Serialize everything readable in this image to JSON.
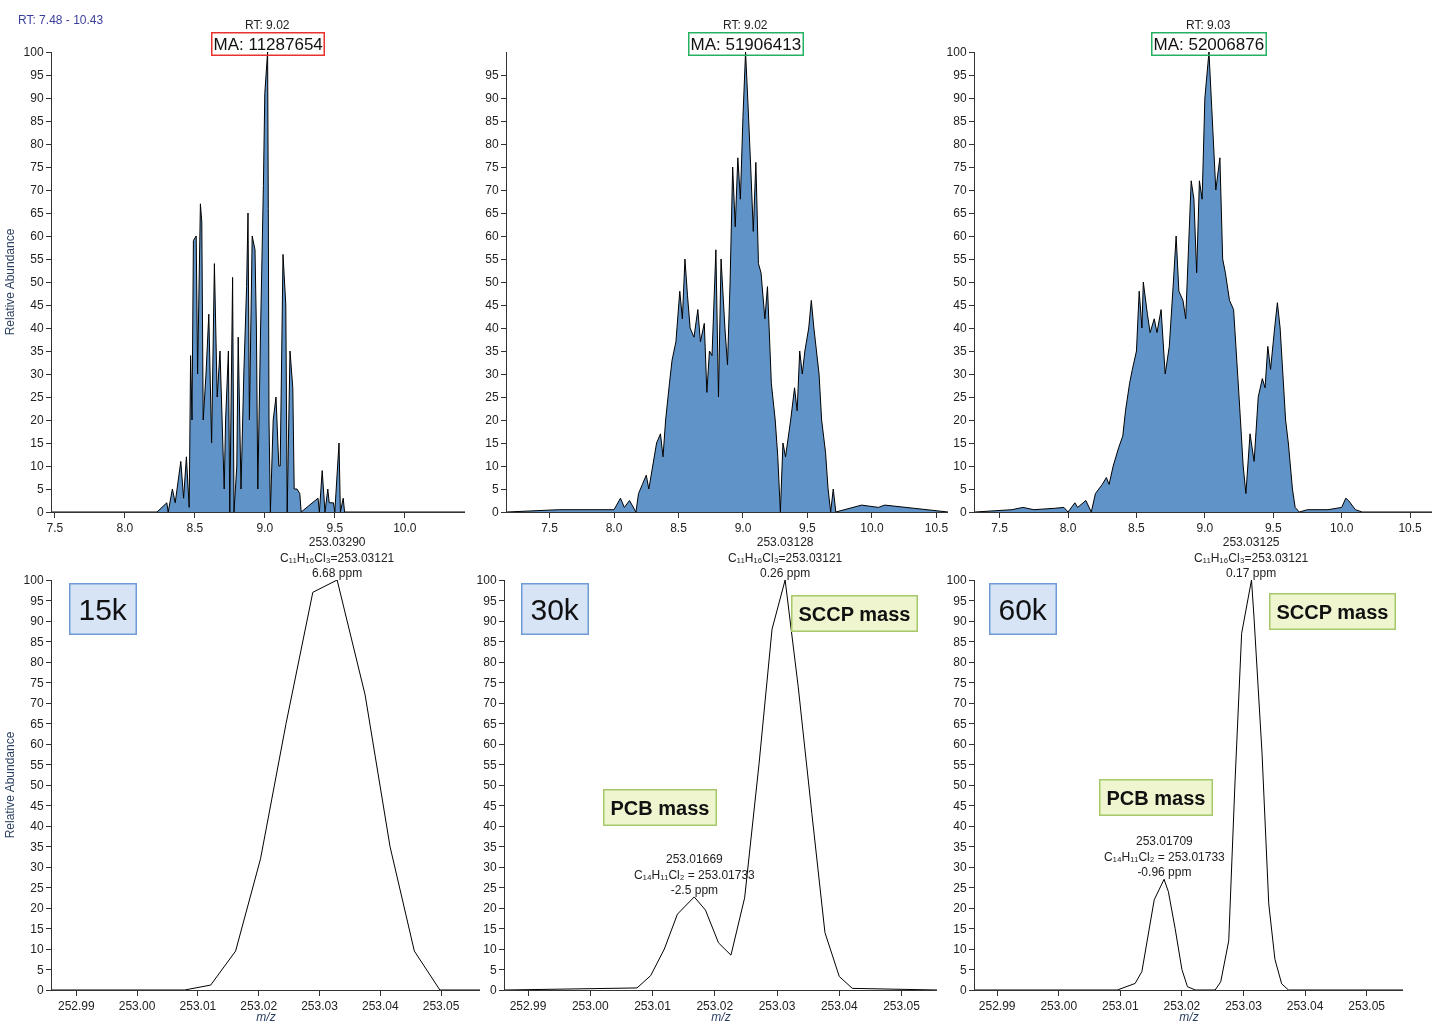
{
  "chart_data": [
    {
      "type": "area",
      "ylabel": "Relative Abundance",
      "xlim": [
        7.48,
        10.43
      ],
      "ylim": [
        0,
        100
      ],
      "xticks": [
        7.5,
        {
          "value": 8,
          "label": "8.0"
        },
        8.5,
        {
          "value": 9,
          "label": "9.0"
        },
        9.5,
        {
          "value": 10,
          "label": "10.0"
        }
      ],
      "yticks": [
        0,
        5,
        10,
        15,
        20,
        25,
        30,
        35,
        40,
        45,
        50,
        55,
        60,
        65,
        70,
        75,
        80,
        85,
        90,
        95,
        100
      ],
      "x": [
        7.48,
        8.23,
        8.3,
        8.31,
        8.34,
        8.36,
        8.4,
        8.42,
        8.44,
        8.46,
        8.47,
        8.48,
        8.49,
        8.51,
        8.52,
        8.54,
        8.55,
        8.56,
        8.58,
        8.6,
        8.62,
        8.64,
        8.66,
        8.68,
        8.71,
        8.72,
        8.74,
        8.75,
        8.77,
        8.78,
        8.8,
        8.81,
        8.83,
        8.85,
        8.87,
        8.88,
        8.89,
        8.91,
        8.93,
        8.94,
        8.95,
        8.97,
        8.99,
        9.0,
        9.02,
        9.025,
        9.03,
        9.04,
        9.06,
        9.08,
        9.1,
        9.11,
        9.13,
        9.15,
        9.16,
        9.18,
        9.2,
        9.21,
        9.23,
        9.25,
        9.26,
        9.38,
        9.39,
        9.41,
        9.43,
        9.45,
        9.46,
        9.49,
        9.5,
        9.53,
        9.54,
        9.56,
        9.57,
        9.7,
        10.43
      ],
      "series": [
        {
          "color": "#6094c8",
          "values": [
            0,
            0,
            2,
            0,
            5,
            2,
            11,
            3,
            12,
            1,
            34,
            20,
            59,
            60,
            30,
            67,
            63,
            20,
            30,
            43,
            15,
            54,
            25,
            35,
            5,
            20,
            35,
            0,
            51,
            0,
            10,
            38,
            5,
            30,
            49,
            65,
            20,
            60,
            57,
            40,
            5,
            40,
            71,
            91,
            100,
            66,
            20,
            0,
            20,
            25,
            10,
            10,
            56,
            45,
            0,
            35,
            27,
            5,
            5,
            4,
            0,
            3,
            0,
            9,
            0,
            5,
            2,
            2,
            0,
            15,
            0,
            3,
            0,
            0,
            0
          ]
        }
      ],
      "annotations": [
        "RT: 7.48 - 10.43",
        {
          "text": "RT: 9.02",
          "x": 9.02,
          "y": 100
        },
        {
          "text": "MA: 11287654",
          "x": 9.02,
          "y": 100
        }
      ]
    },
    {
      "type": "area",
      "xlim": [
        7.17,
        10.59
      ],
      "ylim": [
        0,
        100
      ],
      "xticks": [
        7.5,
        {
          "value": 8,
          "label": "8.0"
        },
        8.5,
        {
          "value": 9,
          "label": "9.0"
        },
        9.5,
        {
          "value": 10,
          "label": "10.0"
        },
        10.5
      ],
      "yticks": [
        0,
        5,
        10,
        15,
        20,
        25,
        30,
        35,
        40,
        45,
        50,
        55,
        60,
        65,
        70,
        75,
        80,
        85,
        90,
        95
      ],
      "x": [
        7.17,
        7.57,
        8.0,
        8.05,
        8.08,
        8.12,
        8.17,
        8.19,
        8.22,
        8.25,
        8.27,
        8.3,
        8.33,
        8.36,
        8.38,
        8.4,
        8.43,
        8.45,
        8.48,
        8.51,
        8.53,
        8.55,
        8.57,
        8.59,
        8.62,
        8.65,
        8.67,
        8.7,
        8.72,
        8.74,
        8.76,
        8.79,
        8.81,
        8.83,
        8.86,
        8.88,
        8.9,
        8.92,
        8.94,
        8.96,
        8.98,
        9.0,
        9.02,
        9.04,
        9.06,
        9.08,
        9.1,
        9.12,
        9.14,
        9.17,
        9.19,
        9.22,
        9.25,
        9.27,
        9.29,
        9.31,
        9.33,
        9.37,
        9.4,
        9.42,
        9.44,
        9.46,
        9.48,
        9.51,
        9.53,
        9.55,
        9.57,
        9.59,
        9.61,
        9.64,
        9.66,
        9.68,
        9.7,
        9.72,
        9.92,
        10.05,
        10.1,
        10.59
      ],
      "series": [
        {
          "color": "#6094c8",
          "values": [
            0,
            0.5,
            0.5,
            3,
            1,
            2.5,
            0,
            4,
            6,
            8,
            5,
            10,
            15,
            17,
            12,
            20,
            28,
            33,
            37,
            48,
            42,
            55,
            47,
            40,
            38,
            44,
            37,
            41,
            26,
            35,
            34,
            57,
            25,
            55,
            40,
            32,
            50,
            75,
            62,
            77,
            68,
            86,
            100,
            88,
            75,
            61,
            76,
            54,
            52,
            42,
            49,
            28,
            20,
            12,
            0,
            15,
            12,
            20,
            27,
            22,
            35,
            30,
            35,
            40,
            46,
            40,
            35,
            30,
            20,
            13,
            5,
            0,
            5,
            0,
            1.5,
            1,
            1.5,
            0
          ]
        }
      ],
      "annotations": [
        {
          "text": "RT: 9.02",
          "x": 9.02,
          "y": 100
        },
        {
          "text": "MA: 51906413",
          "x": 9.02,
          "y": 100
        }
      ]
    },
    {
      "type": "area",
      "xlim": [
        7.32,
        10.66
      ],
      "ylim": [
        0,
        100
      ],
      "xticks": [
        7.5,
        {
          "value": 8,
          "label": "8.0"
        },
        8.5,
        {
          "value": 9,
          "label": "9.0"
        },
        9.5,
        {
          "value": 10,
          "label": "10.0"
        },
        10.5
      ],
      "yticks": [
        0,
        5,
        10,
        15,
        20,
        25,
        30,
        35,
        40,
        45,
        50,
        55,
        60,
        65,
        70,
        75,
        80,
        85,
        90,
        95,
        100
      ],
      "x": [
        7.32,
        7.59,
        7.67,
        7.75,
        7.9,
        7.97,
        8.0,
        8.05,
        8.07,
        8.13,
        8.17,
        8.2,
        8.25,
        8.28,
        8.3,
        8.33,
        8.37,
        8.4,
        8.42,
        8.45,
        8.47,
        8.5,
        8.52,
        8.54,
        8.55,
        8.58,
        8.6,
        8.63,
        8.65,
        8.68,
        8.71,
        8.74,
        8.77,
        8.79,
        8.81,
        8.84,
        8.86,
        8.88,
        8.9,
        8.92,
        8.94,
        8.96,
        8.98,
        9.0,
        9.03,
        9.05,
        9.08,
        9.11,
        9.13,
        9.15,
        9.18,
        9.21,
        9.25,
        9.28,
        9.3,
        9.33,
        9.36,
        9.39,
        9.42,
        9.44,
        9.46,
        9.48,
        9.51,
        9.53,
        9.55,
        9.57,
        9.59,
        9.61,
        9.64,
        9.66,
        9.69,
        9.75,
        9.9,
        10.0,
        10.03,
        10.05,
        10.1,
        10.15,
        10.66
      ],
      "series": [
        {
          "color": "#6094c8",
          "values": [
            0,
            0.5,
            1,
            0.5,
            0.8,
            1,
            0,
            2,
            1,
            2.5,
            0,
            4,
            6,
            7.5,
            6,
            10,
            14,
            16.5,
            22,
            28,
            31,
            35,
            48,
            40,
            50,
            43,
            39,
            42,
            39,
            44,
            30,
            36,
            50,
            60,
            48,
            46,
            42,
            57,
            72,
            68,
            52,
            72,
            68,
            90,
            100,
            88,
            70,
            77,
            55,
            52,
            46,
            44,
            25,
            10,
            4,
            17,
            11,
            25,
            29,
            27,
            36,
            31,
            40,
            45.5,
            40,
            30,
            20,
            15,
            5,
            1,
            0,
            0.5,
            0.5,
            1,
            3,
            2.5,
            0.5,
            0,
            0
          ]
        }
      ],
      "annotations": [
        {
          "text": "RT: 9.03",
          "x": 9.03,
          "y": 100
        },
        {
          "text": "MA: 52006876",
          "x": 9.03,
          "y": 100
        }
      ]
    },
    {
      "type": "line",
      "xlabel": "m/z",
      "ylabel": "Relative Abundance",
      "xlim": [
        252.986,
        253.0564
      ],
      "ylim": [
        0,
        100
      ],
      "xticks": [
        252.99,
        {
          "value": 253,
          "label": "253.00"
        },
        253.01,
        253.02,
        253.03,
        253.04,
        253.05
      ],
      "yticks": [
        0,
        5,
        10,
        15,
        20,
        25,
        30,
        35,
        40,
        45,
        50,
        55,
        60,
        65,
        70,
        75,
        80,
        85,
        90,
        95,
        100
      ],
      "x": [
        252.986,
        253.0078,
        253.0121,
        253.0162,
        253.0203,
        253.0245,
        253.0289,
        253.0329,
        253.0375,
        253.0416,
        253.0456,
        253.0498,
        253.0564
      ],
      "series": [
        {
          "color": "#000000",
          "values": [
            0,
            0,
            1.2,
            9.5,
            32,
            65,
            97,
            100,
            72,
            35,
            9.5,
            0,
            0
          ]
        }
      ],
      "annotations": [
        "15k",
        {
          "text": "253.03290\nC₁₁H₁₆Cl₃=253.03121\n6.68 ppm",
          "x": 253.0329,
          "y": 100
        }
      ]
    },
    {
      "type": "line",
      "xlabel": "m/z",
      "xlim": [
        252.9863,
        253.0557
      ],
      "ylim": [
        0,
        100
      ],
      "xticks": [
        252.99,
        {
          "value": 253,
          "label": "253.00"
        },
        253.01,
        253.02,
        253.03,
        253.04,
        253.05
      ],
      "yticks": [
        0,
        5,
        10,
        15,
        20,
        25,
        30,
        35,
        40,
        45,
        50,
        55,
        60,
        65,
        70,
        75,
        80,
        85,
        90,
        95,
        100
      ],
      "x": [
        252.9863,
        253.0075,
        253.0097,
        253.0119,
        253.014,
        253.0167,
        253.0185,
        253.0206,
        253.0226,
        253.0248,
        253.0271,
        253.0292,
        253.0313,
        253.0334,
        253.0356,
        253.0377,
        253.04,
        253.0421,
        253.0557
      ],
      "series": [
        {
          "color": "#000000",
          "values": [
            0,
            0.5,
            3.5,
            10,
            18.5,
            22.7,
            19.5,
            11.5,
            8.5,
            22.5,
            55,
            88,
            100,
            74,
            43,
            14,
            3.3,
            0.4,
            0
          ]
        }
      ],
      "annotations": [
        "30k",
        "SCCP mass",
        "PCB mass",
        {
          "text": "253.03128\nC₁₁H₁₆Cl₃=253.03121\n0.26 ppm",
          "x": 253.0313,
          "y": 100
        },
        {
          "text": "253.01669\nC₁₄H₁₁Cl₂ = 253.01733\n-2.5 ppm",
          "x": 253.0167,
          "y": 22.7
        }
      ]
    },
    {
      "type": "line",
      "xlabel": "m/z",
      "xlim": [
        252.9864,
        253.0559
      ],
      "ylim": [
        0,
        100
      ],
      "xticks": [
        252.99,
        {
          "value": 253,
          "label": "253.00"
        },
        253.01,
        253.02,
        253.03,
        253.04,
        253.05
      ],
      "yticks": [
        0,
        5,
        10,
        15,
        20,
        25,
        30,
        35,
        40,
        45,
        50,
        55,
        60,
        65,
        70,
        75,
        80,
        85,
        90,
        95,
        100
      ],
      "x": [
        252.9864,
        253.0095,
        253.0124,
        253.0135,
        253.0155,
        253.0171,
        253.0178,
        253.0189,
        253.02,
        253.0209,
        253.0222,
        253.0254,
        253.0263,
        253.0276,
        253.0286,
        253.0297,
        253.0313,
        253.0317,
        253.033,
        253.0341,
        253.0351,
        253.0362,
        253.0373,
        253.0559
      ],
      "series": [
        {
          "color": "#000000",
          "values": [
            0,
            0,
            1.6,
            4.5,
            22,
            27,
            24,
            15,
            5,
            0.8,
            0,
            0,
            2,
            12,
            50,
            87,
            100,
            91,
            58,
            21,
            7.5,
            1.5,
            0,
            0
          ]
        }
      ],
      "annotations": [
        "60k",
        "SCCP mass",
        "PCB mass",
        {
          "text": "253.03125\nC₁₁H₁₆Cl₃=253.03121\n0.17 ppm",
          "x": 253.0313,
          "y": 100
        },
        {
          "text": "253.01709\nC₁₄H₁₁Cl₂ = 253.01733\n-0.96 ppm",
          "x": 253.0171,
          "y": 27
        }
      ]
    }
  ]
}
